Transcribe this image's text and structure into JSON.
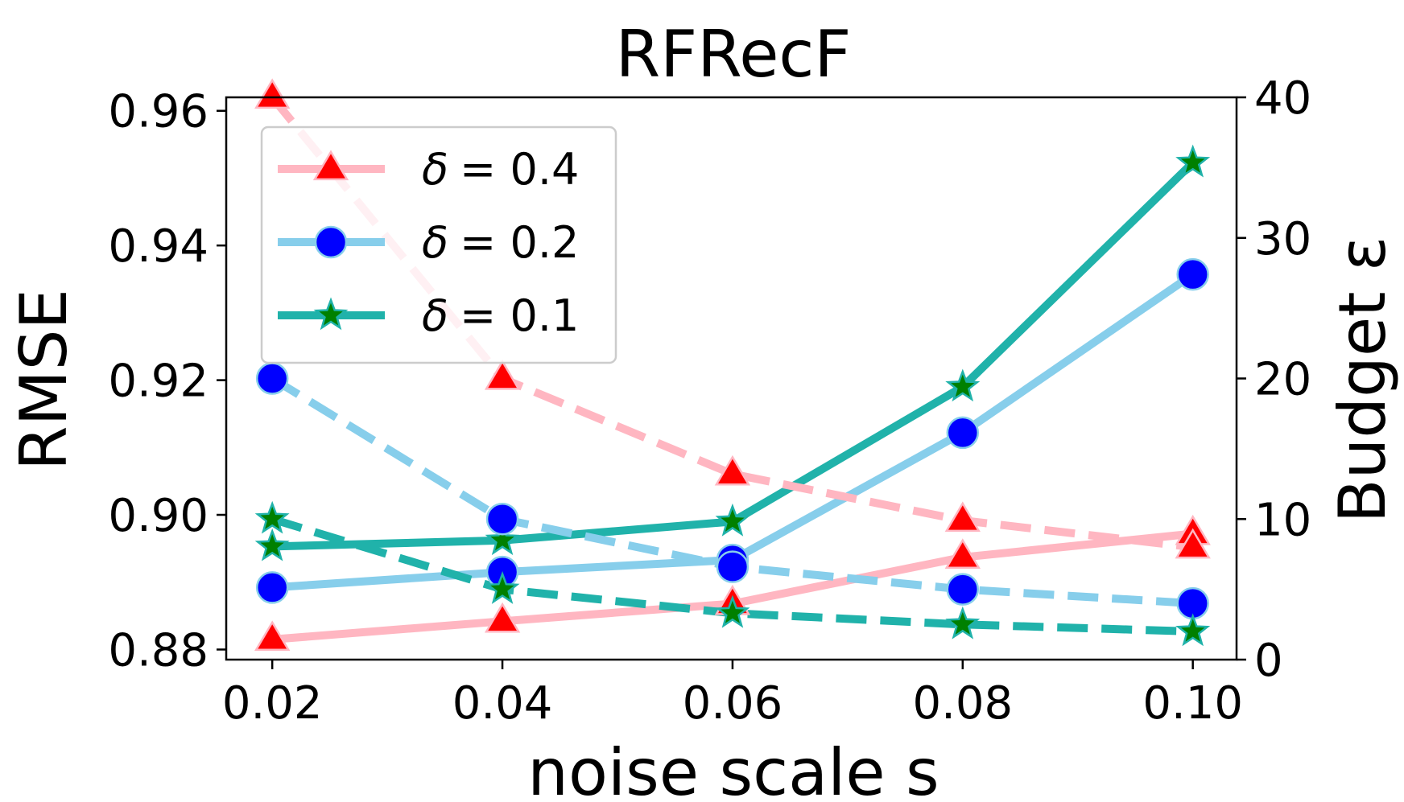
{
  "chart_data": {
    "type": "line",
    "title": "RFRecF",
    "xlabel": "noise scale s",
    "ylabel": "RMSE",
    "y2label": "Budget ε",
    "x": [
      0.02,
      0.04,
      0.06,
      0.08,
      0.1
    ],
    "x_tick_labels": [
      "0.02",
      "0.04",
      "0.06",
      "0.08",
      "0.10"
    ],
    "xlim": [
      0.016,
      0.1038
    ],
    "ylim": [
      0.8785,
      0.962
    ],
    "y_ticks": [
      0.88,
      0.9,
      0.92,
      0.94,
      0.96
    ],
    "y_tick_labels": [
      "0.88",
      "0.90",
      "0.92",
      "0.94",
      "0.96"
    ],
    "y2lim": [
      0,
      40
    ],
    "y2_ticks": [
      0,
      10,
      20,
      30,
      40
    ],
    "y2_tick_labels": [
      "0",
      "10",
      "20",
      "30",
      "40"
    ],
    "legend_position": "top-left",
    "series": [
      {
        "name": "δ = 0.4",
        "legend_symbol": "δ",
        "legend_value": "= 0.4",
        "axis": "left",
        "style": "solid",
        "marker": "triangle",
        "line_color": "#FFB6C1",
        "marker_color": "#FF0000",
        "values": [
          0.8815,
          0.8842,
          0.8868,
          0.8937,
          0.8972
        ]
      },
      {
        "name": "δ = 0.2",
        "legend_symbol": "δ",
        "legend_value": "= 0.2",
        "axis": "left",
        "style": "solid",
        "marker": "circle",
        "line_color": "#87CEEB",
        "marker_color": "#0000FF",
        "values": [
          0.8892,
          0.8915,
          0.8933,
          0.9122,
          0.9357
        ]
      },
      {
        "name": "δ = 0.1",
        "legend_symbol": "δ",
        "legend_value": "= 0.1",
        "axis": "left",
        "style": "solid",
        "marker": "star",
        "line_color": "#20B2AA",
        "marker_color": "#008000",
        "values": [
          0.8953,
          0.8962,
          0.899,
          0.919,
          0.9523
        ]
      },
      {
        "name": "δ = 0.4 (budget)",
        "axis": "right",
        "style": "dashed",
        "marker": "triangle",
        "line_color": "#FFB6C1",
        "marker_color": "#FF0000",
        "values": [
          40,
          20,
          13.2,
          9.9,
          8.0
        ]
      },
      {
        "name": "δ = 0.2 (budget)",
        "axis": "right",
        "style": "dashed",
        "marker": "circle",
        "line_color": "#87CEEB",
        "marker_color": "#0000FF",
        "values": [
          20,
          10,
          6.6,
          5.0,
          4.0
        ]
      },
      {
        "name": "δ = 0.1 (budget)",
        "axis": "right",
        "style": "dashed",
        "marker": "star",
        "line_color": "#20B2AA",
        "marker_color": "#008000",
        "values": [
          10,
          5,
          3.3,
          2.5,
          2.0
        ]
      }
    ]
  }
}
